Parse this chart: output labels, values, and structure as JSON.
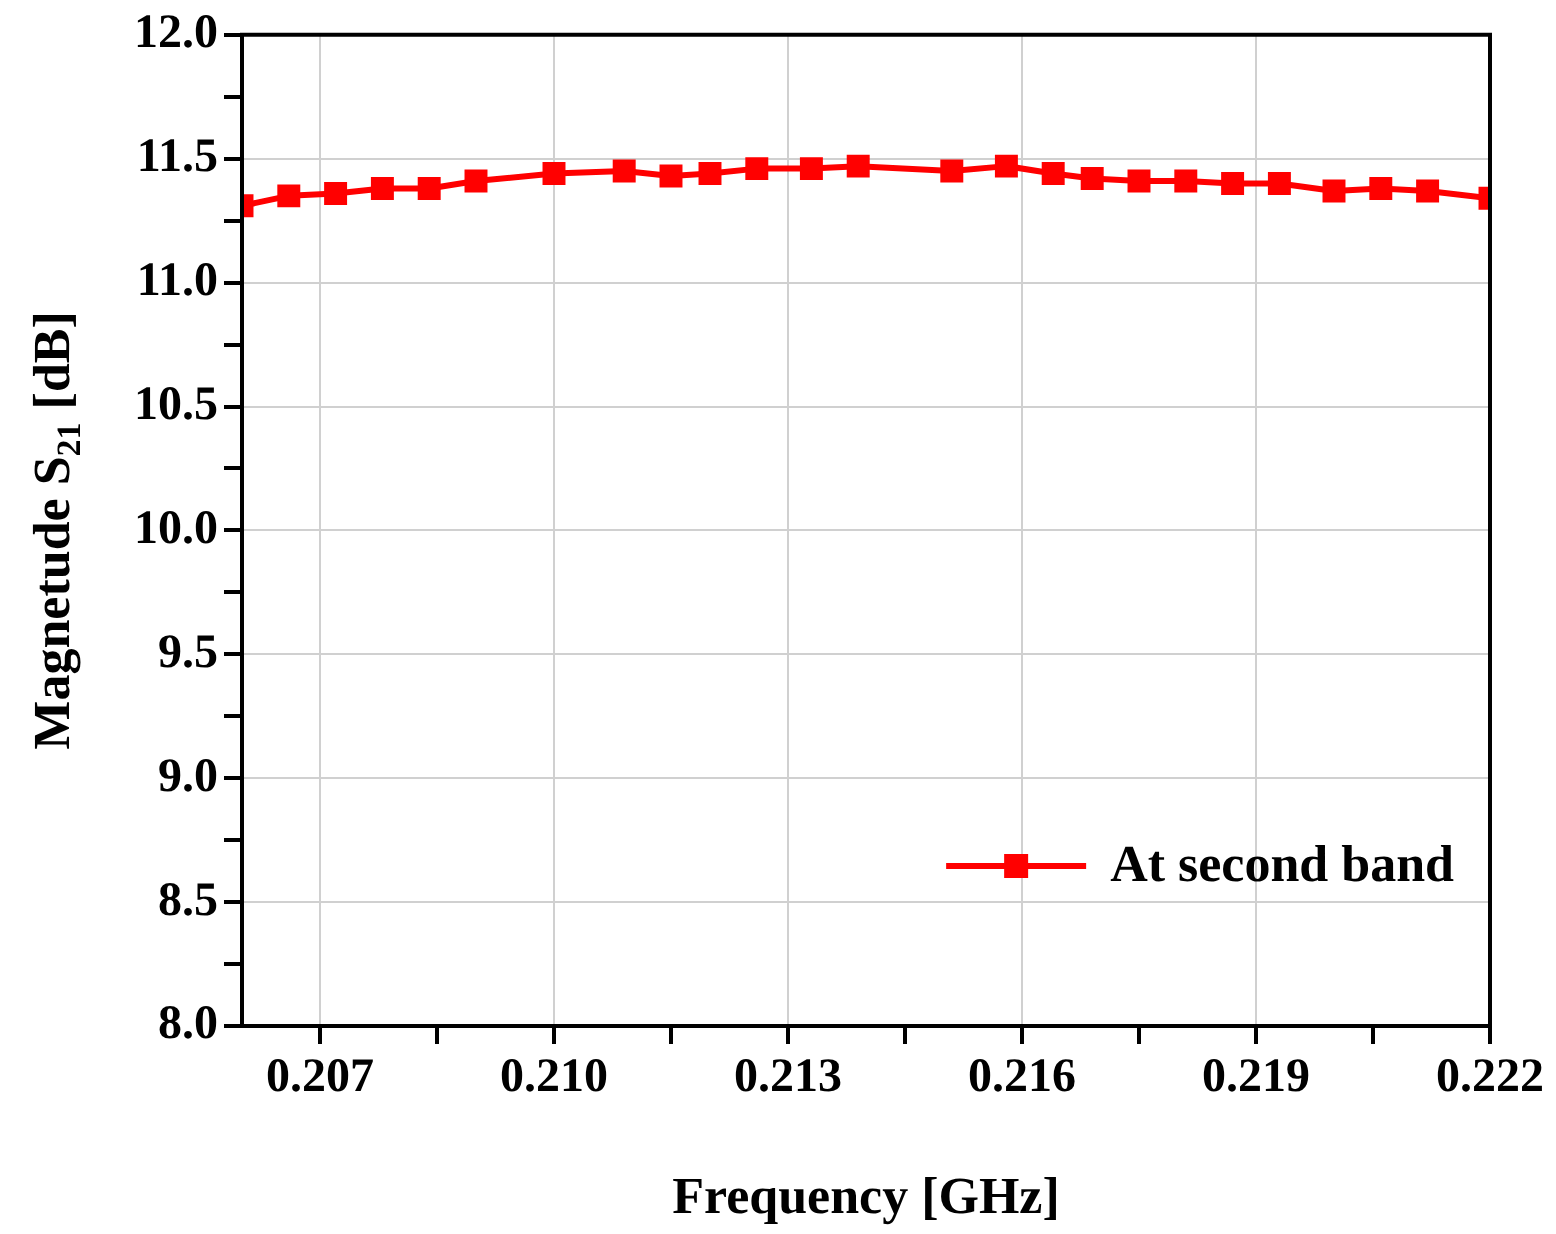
{
  "chart_data": {
    "type": "line",
    "xlabel": "Frequency [GHz]",
    "ylabel": "Magnetude S$_{21}$ [dB]",
    "xlim": [
      0.206,
      0.222
    ],
    "ylim": [
      8,
      12
    ],
    "xticks": [
      {
        "value": 0.2085,
        "label": null
      },
      {
        "value": 0.2115,
        "label": null
      },
      {
        "value": 0.2145,
        "label": null
      },
      {
        "value": 0.2175,
        "label": null
      },
      {
        "value": 0.2205,
        "label": null
      },
      {
        "value": 0.207,
        "label": "0.207"
      },
      {
        "value": 0.21,
        "label": "0.210"
      },
      {
        "value": 0.213,
        "label": "0.213"
      },
      {
        "value": 0.216,
        "label": "0.216"
      },
      {
        "value": 0.219,
        "label": "0.219"
      },
      {
        "value": 0.222,
        "label": "0.222"
      }
    ],
    "yticks": [
      {
        "value": 8,
        "label": "8.0"
      },
      {
        "value": 8.25,
        "label": null
      },
      {
        "value": 8.5,
        "label": "8.5"
      },
      {
        "value": 8.75,
        "label": null
      },
      {
        "value": 9,
        "label": "9.0"
      },
      {
        "value": 9.25,
        "label": null
      },
      {
        "value": 9.5,
        "label": "9.5"
      },
      {
        "value": 9.75,
        "label": null
      },
      {
        "value": 10,
        "label": "10.0"
      },
      {
        "value": 10.25,
        "label": null
      },
      {
        "value": 10.5,
        "label": "10.5"
      },
      {
        "value": 10.75,
        "label": null
      },
      {
        "value": 11,
        "label": "11.0"
      },
      {
        "value": 11.25,
        "label": null
      },
      {
        "value": 11.5,
        "label": "11.5"
      },
      {
        "value": 11.75,
        "label": null
      },
      {
        "value": 12,
        "label": "12.0"
      }
    ],
    "grid": true,
    "legend": "bottom right",
    "marker": "square",
    "line_style": "solid",
    "series": [
      {
        "name": "At second band",
        "color": "#ff0000",
        "x": [
          0.206,
          0.2066,
          0.2072,
          0.2078,
          0.2084,
          0.209,
          0.21,
          0.2109,
          0.2115,
          0.212,
          0.2126,
          0.2133,
          0.2139,
          0.2151,
          0.2158,
          0.2164,
          0.2169,
          0.2175,
          0.2181,
          0.2187,
          0.2193,
          0.22,
          0.2206,
          0.2212,
          0.222
        ],
        "values": [
          11.31,
          11.35,
          11.36,
          11.38,
          11.38,
          11.41,
          11.44,
          11.45,
          11.43,
          11.44,
          11.46,
          11.46,
          11.47,
          11.45,
          11.47,
          11.44,
          11.42,
          11.41,
          11.41,
          11.4,
          11.4,
          11.37,
          11.38,
          11.37,
          11.34
        ]
      }
    ]
  }
}
